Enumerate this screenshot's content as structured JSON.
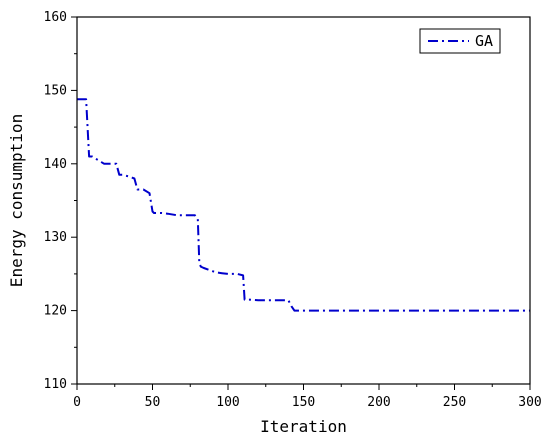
{
  "chart_data": {
    "type": "line",
    "title": "",
    "xlabel": "Iteration",
    "ylabel": "Energy consumption",
    "xlim": [
      0,
      300
    ],
    "ylim": [
      110,
      160
    ],
    "xticks": [
      0,
      50,
      100,
      150,
      200,
      250,
      300
    ],
    "yticks": [
      110,
      120,
      130,
      140,
      150,
      160
    ],
    "grid": false,
    "legend_position": "top-right",
    "series": [
      {
        "name": "GA",
        "color": "#0000cc",
        "line_style": "dash-dot",
        "x": [
          0,
          6,
          8,
          10,
          14,
          18,
          22,
          26,
          28,
          30,
          34,
          38,
          40,
          44,
          48,
          50,
          51,
          52,
          56,
          60,
          66,
          72,
          78,
          80,
          81,
          82,
          84,
          88,
          92,
          96,
          100,
          106,
          110,
          111,
          114,
          120,
          126,
          132,
          138,
          140,
          142,
          144,
          146,
          150,
          200,
          250,
          300
        ],
        "y": [
          148.8,
          148.8,
          141.0,
          141.0,
          140.5,
          140.0,
          140.0,
          140.0,
          138.5,
          138.5,
          138.3,
          138.0,
          136.5,
          136.5,
          136.0,
          133.5,
          133.3,
          133.3,
          133.3,
          133.2,
          133.0,
          133.0,
          133.0,
          132.5,
          126.5,
          126.0,
          125.8,
          125.5,
          125.2,
          125.1,
          125.0,
          125.0,
          124.8,
          121.5,
          121.5,
          121.4,
          121.4,
          121.4,
          121.4,
          121.4,
          120.6,
          120.0,
          120.0,
          120.0,
          120.0,
          120.0,
          120.0
        ]
      }
    ]
  }
}
